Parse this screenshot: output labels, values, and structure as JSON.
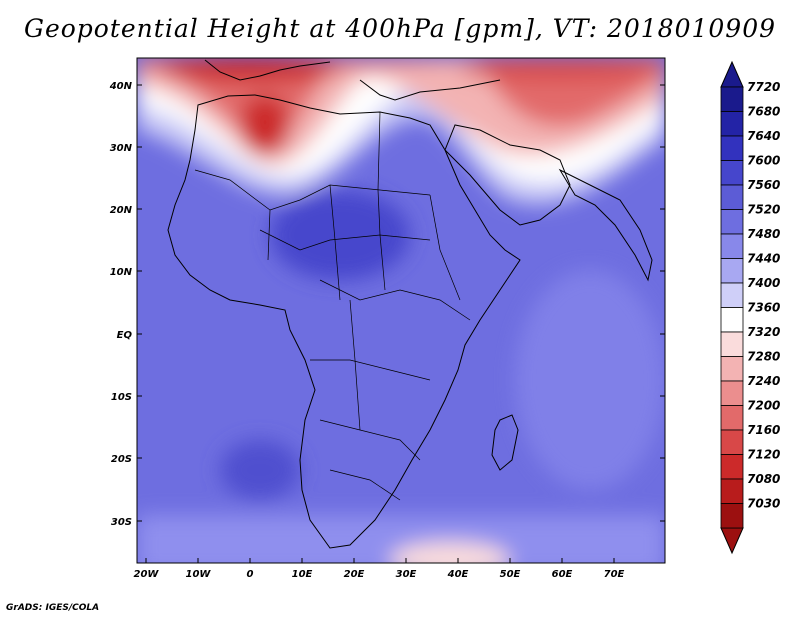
{
  "title": "Geopotential Height at 400hPa [gpm], VT: 2018010909",
  "footer": "GrADS: IGES/COLA",
  "lat_labels": [
    "40N",
    "30N",
    "20N",
    "10N",
    "EQ",
    "10S",
    "20S",
    "30S"
  ],
  "lon_labels": [
    "20W",
    "10W",
    "0",
    "10E",
    "20E",
    "30E",
    "40E",
    "50E",
    "60E",
    "70E"
  ],
  "colorbar": {
    "labels": [
      "7720",
      "7680",
      "7640",
      "7600",
      "7560",
      "7520",
      "7480",
      "7440",
      "7400",
      "7360",
      "7320",
      "7280",
      "7240",
      "7200",
      "7160",
      "7120",
      "7080",
      "7030"
    ],
    "colors": [
      "#1a1a8c",
      "#2323a6",
      "#3232be",
      "#4646cc",
      "#5c5cd6",
      "#6e6ee0",
      "#8888ea",
      "#a8a8f2",
      "#cfcff8",
      "#ffffff",
      "#fadcdc",
      "#f3b3b3",
      "#eb8e8e",
      "#e26a6a",
      "#d84848",
      "#cc2a2a",
      "#b81c1c",
      "#9c1010"
    ]
  }
}
